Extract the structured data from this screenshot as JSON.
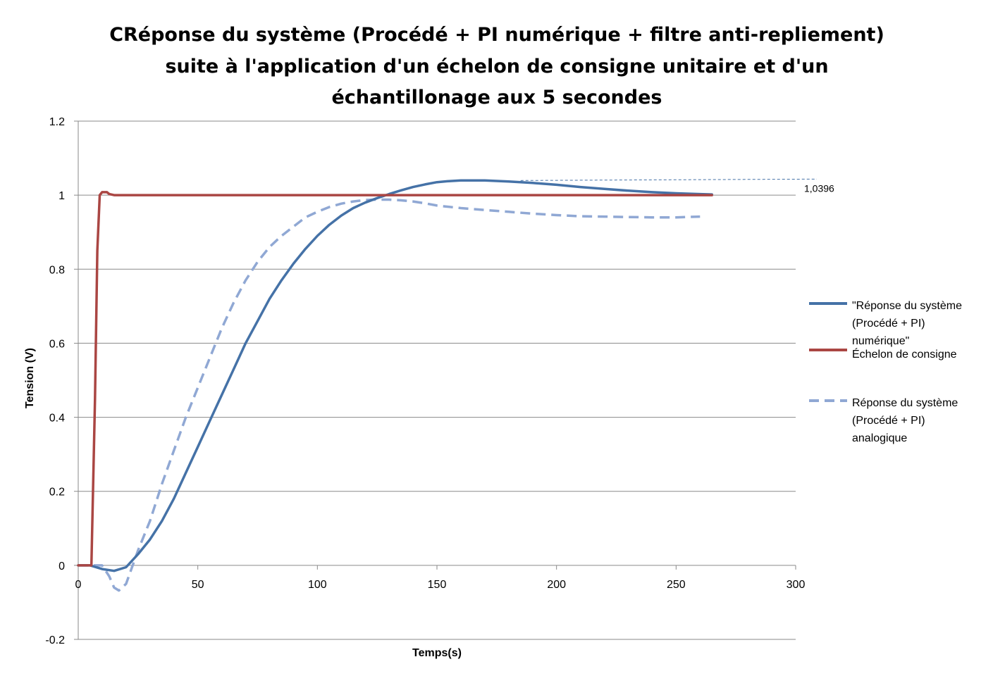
{
  "chart_data": {
    "type": "line",
    "title_lines": [
      "CRéponse du système (Procédé + PI numérique + filtre anti-repliement)",
      "suite à l'application d'un échelon de consigne unitaire et d'un",
      "échantillonage aux 5 secondes"
    ],
    "xlabel": "Temps(s)",
    "ylabel": "Tension (V)",
    "xlim": [
      0,
      300
    ],
    "ylim": [
      -0.2,
      1.2
    ],
    "x_ticks": [
      "0",
      "50",
      "100",
      "150",
      "200",
      "250",
      "300"
    ],
    "y_ticks": [
      "-0.2",
      "0",
      "0.2",
      "0.4",
      "0.6",
      "0.8",
      "1",
      "1.2"
    ],
    "grid": "horizontal",
    "legend_position": "right",
    "annotation": {
      "text": "1,0396",
      "y": 1.0396,
      "x_start": 185,
      "x_end": 300
    },
    "series": [
      {
        "name": "\"Réponse du système (Procédé + PI) numérique\"",
        "color": "#4572A7",
        "style": "solid",
        "x": [
          0,
          5,
          10,
          15,
          20,
          25,
          30,
          35,
          40,
          45,
          50,
          55,
          60,
          65,
          70,
          75,
          80,
          85,
          90,
          95,
          100,
          105,
          110,
          115,
          120,
          125,
          130,
          135,
          140,
          145,
          150,
          155,
          160,
          170,
          180,
          190,
          200,
          210,
          220,
          230,
          240,
          250,
          260,
          265
        ],
        "values": [
          0,
          0,
          -0.01,
          -0.015,
          -0.005,
          0.03,
          0.07,
          0.12,
          0.18,
          0.25,
          0.32,
          0.39,
          0.46,
          0.53,
          0.6,
          0.66,
          0.72,
          0.77,
          0.815,
          0.855,
          0.89,
          0.92,
          0.945,
          0.965,
          0.98,
          0.992,
          1.003,
          1.013,
          1.022,
          1.029,
          1.035,
          1.038,
          1.0396,
          1.0396,
          1.037,
          1.033,
          1.028,
          1.022,
          1.017,
          1.012,
          1.008,
          1.005,
          1.003,
          1.002
        ]
      },
      {
        "name": "Échelon de consigne",
        "color": "#AA4643",
        "style": "solid",
        "x": [
          0,
          5,
          5.5,
          7,
          8,
          9,
          10,
          12,
          13,
          15,
          265
        ],
        "values": [
          0,
          0,
          0,
          0.45,
          0.85,
          1.0,
          1.008,
          1.008,
          1.003,
          1.0,
          1.0
        ]
      },
      {
        "name": "Réponse du système (Procédé + PI) analogique",
        "color": "#90A8D4",
        "style": "dashed",
        "x": [
          0,
          5,
          10,
          13,
          15,
          17,
          20,
          25,
          30,
          35,
          40,
          45,
          50,
          55,
          60,
          65,
          70,
          75,
          80,
          85,
          90,
          95,
          100,
          105,
          110,
          115,
          120,
          125,
          130,
          135,
          140,
          145,
          150,
          160,
          170,
          180,
          190,
          200,
          210,
          220,
          230,
          240,
          250,
          260
        ],
        "values": [
          0,
          0,
          0,
          -0.03,
          -0.06,
          -0.068,
          -0.05,
          0.04,
          0.12,
          0.22,
          0.31,
          0.4,
          0.48,
          0.56,
          0.64,
          0.71,
          0.77,
          0.82,
          0.86,
          0.89,
          0.915,
          0.94,
          0.955,
          0.968,
          0.977,
          0.983,
          0.987,
          0.988,
          0.988,
          0.986,
          0.983,
          0.978,
          0.972,
          0.965,
          0.96,
          0.955,
          0.95,
          0.946,
          0.943,
          0.942,
          0.941,
          0.94,
          0.94,
          0.942
        ]
      }
    ]
  }
}
